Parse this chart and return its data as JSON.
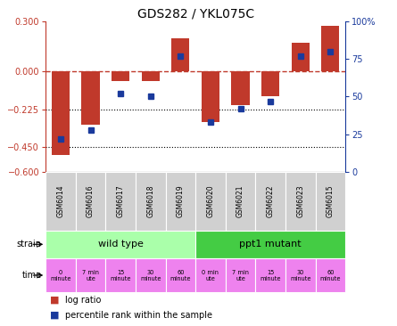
{
  "title": "GDS282 / YKL075C",
  "samples": [
    "GSM6014",
    "GSM6016",
    "GSM6017",
    "GSM6018",
    "GSM6019",
    "GSM6020",
    "GSM6021",
    "GSM6022",
    "GSM6023",
    "GSM6015"
  ],
  "log_ratio": [
    -0.5,
    -0.32,
    -0.06,
    -0.06,
    0.2,
    -0.3,
    -0.2,
    -0.15,
    0.17,
    0.27
  ],
  "percentile": [
    22,
    28,
    52,
    50,
    77,
    33,
    42,
    47,
    77,
    80
  ],
  "bar_color": "#c0392b",
  "dot_color": "#1a3a9c",
  "ylim_left": [
    -0.6,
    0.3
  ],
  "ylim_right": [
    0,
    100
  ],
  "yticks_left": [
    0.3,
    0,
    -0.225,
    -0.45,
    -0.6
  ],
  "yticks_right": [
    100,
    75,
    50,
    25,
    0
  ],
  "hline_dashed": 0.0,
  "hline_dots": [
    -0.225,
    -0.45
  ],
  "gsm_bg_color": "#d0d0d0",
  "wild_type_color": "#aaffaa",
  "ppt1_mutant_color": "#44cc44",
  "time_color_wt": "#ee82ee",
  "time_color_ppt": "#ee82ee",
  "time_labels": [
    "0\nminute",
    "7 min\nute",
    "15\nminute",
    "30\nminute",
    "60\nminute",
    "0 min\nute",
    "7 min\nute",
    "15\nminute",
    "30\nminute",
    "60\nminute"
  ],
  "strain_labels": [
    "wild type",
    "ppt1 mutant"
  ],
  "legend_log_ratio": "log ratio",
  "legend_percentile": "percentile rank within the sample"
}
